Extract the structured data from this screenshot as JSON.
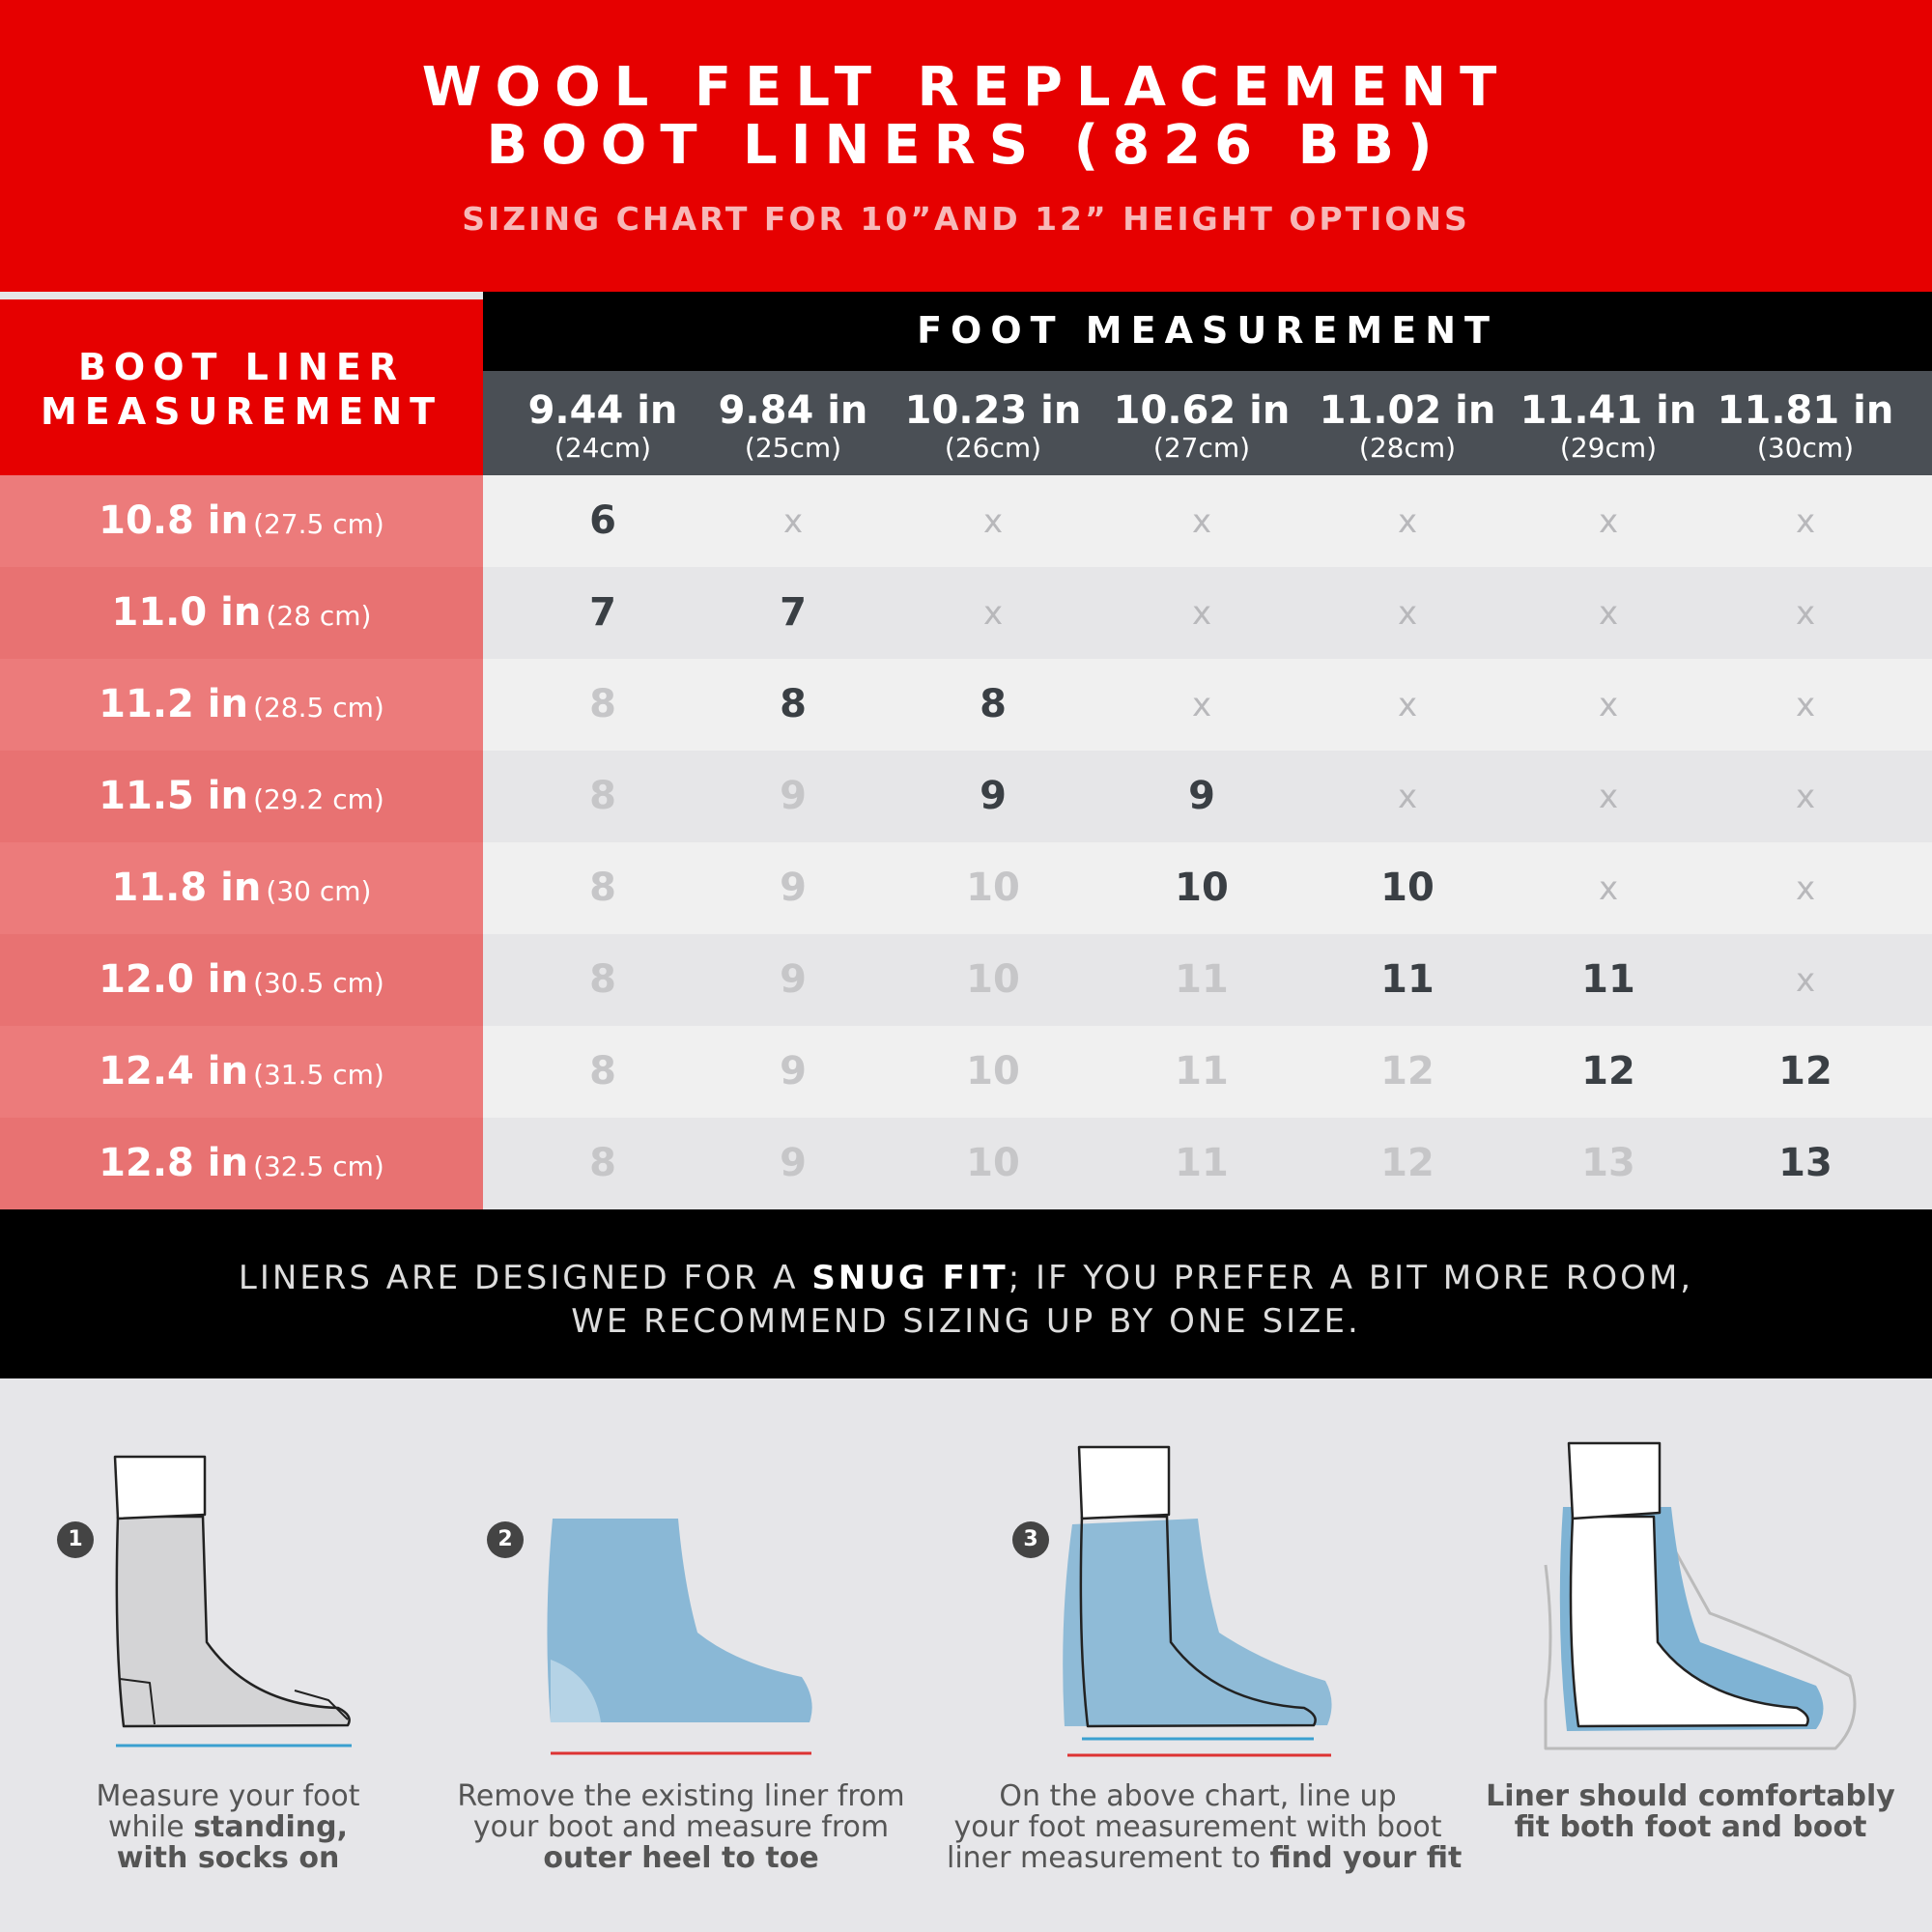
{
  "header": {
    "title": [
      "WOOL FELT REPLACEMENT",
      "BOOT LINERS (826 BB)"
    ],
    "subtitle": "SIZING CHART FOR 10”AND 12” HEIGHT OPTIONS"
  },
  "table": {
    "row_header_title": [
      "BOOT LINER",
      "MEASUREMENT"
    ],
    "column_group_title": "FOOT MEASUREMENT",
    "columns": [
      {
        "in": "9.44 in",
        "cm": "(24cm)"
      },
      {
        "in": "9.84 in",
        "cm": "(25cm)"
      },
      {
        "in": "10.23 in",
        "cm": "(26cm)"
      },
      {
        "in": "10.62 in",
        "cm": "(27cm)"
      },
      {
        "in": "11.02 in",
        "cm": "(28cm)"
      },
      {
        "in": "11.41 in",
        "cm": "(29cm)"
      },
      {
        "in": "11.81 in",
        "cm": "(30cm)"
      }
    ],
    "rows": [
      {
        "in": "10.8 in",
        "cm": "(27.5 cm)",
        "cells": [
          "6",
          "x",
          "x",
          "x",
          "x",
          "x",
          "x"
        ],
        "fit": [
          0
        ]
      },
      {
        "in": "11.0 in",
        "cm": "(28 cm)",
        "cells": [
          "7",
          "7",
          "x",
          "x",
          "x",
          "x",
          "x"
        ],
        "fit": [
          0,
          1
        ]
      },
      {
        "in": "11.2 in",
        "cm": "(28.5 cm)",
        "cells": [
          "8",
          "8",
          "8",
          "x",
          "x",
          "x",
          "x"
        ],
        "fit": [
          1,
          2
        ]
      },
      {
        "in": "11.5 in",
        "cm": "(29.2 cm)",
        "cells": [
          "8",
          "9",
          "9",
          "9",
          "x",
          "x",
          "x"
        ],
        "fit": [
          2,
          3
        ]
      },
      {
        "in": "11.8 in",
        "cm": "(30 cm)",
        "cells": [
          "8",
          "9",
          "10",
          "10",
          "10",
          "x",
          "x"
        ],
        "fit": [
          3,
          4
        ]
      },
      {
        "in": "12.0 in",
        "cm": "(30.5 cm)",
        "cells": [
          "8",
          "9",
          "10",
          "11",
          "11",
          "11",
          "x"
        ],
        "fit": [
          4,
          5
        ]
      },
      {
        "in": "12.4 in",
        "cm": "(31.5 cm)",
        "cells": [
          "8",
          "9",
          "10",
          "11",
          "12",
          "12",
          "12"
        ],
        "fit": [
          5,
          6
        ]
      },
      {
        "in": "12.8 in",
        "cm": "(32.5 cm)",
        "cells": [
          "8",
          "9",
          "10",
          "11",
          "12",
          "13",
          "13"
        ],
        "fit": [
          6
        ]
      }
    ]
  },
  "note": {
    "lines": [
      [
        {
          "text": "LINERS ARE DESIGNED FOR A "
        },
        {
          "text": "SNUG FIT",
          "bold": true
        },
        {
          "text": "; IF YOU PREFER A BIT MORE ROOM,"
        }
      ],
      [
        {
          "text": "WE RECOMMEND SIZING UP BY ONE SIZE."
        }
      ]
    ]
  },
  "steps": [
    {
      "badge": "1",
      "lines": [
        [
          {
            "text": "Measure your foot"
          }
        ],
        [
          {
            "text": "while "
          },
          {
            "text": "standing,",
            "bold": true
          }
        ],
        [
          {
            "text": "with socks on",
            "bold": true
          }
        ]
      ]
    },
    {
      "badge": "2",
      "lines": [
        [
          {
            "text": "Remove the existing liner from"
          }
        ],
        [
          {
            "text": "your boot and measure from"
          }
        ],
        [
          {
            "text": "outer heel to toe",
            "bold": true
          }
        ]
      ]
    },
    {
      "badge": "3",
      "lines": [
        [
          {
            "text": "On the above chart, line up"
          }
        ],
        [
          {
            "text": "your foot measurement with boot"
          }
        ],
        [
          {
            "text": "liner measurement to "
          },
          {
            "text": "find your fit",
            "bold": true
          }
        ]
      ]
    },
    {
      "lines": [
        [
          {
            "text": "Liner should comfortably",
            "bold": true
          }
        ],
        [
          {
            "text": "fit both foot and boot",
            "bold": true
          }
        ]
      ]
    }
  ]
}
